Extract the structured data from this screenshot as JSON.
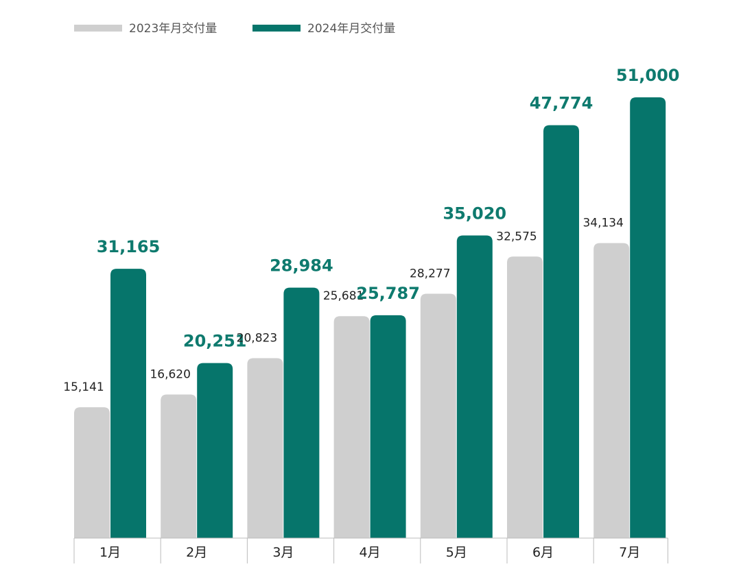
{
  "colors": {
    "series_2023": "#cfcfcf",
    "series_2024": "#06756b",
    "label_2024": "#0e7a6e",
    "label_2023": "#222222",
    "axis": "#bbbbbb"
  },
  "chart_data": {
    "type": "bar",
    "categories": [
      "1月",
      "2月",
      "3月",
      "4月",
      "5月",
      "6月",
      "7月"
    ],
    "series": [
      {
        "name": "2023年月交付量",
        "values": [
          15141,
          16620,
          20823,
          25681,
          28277,
          32575,
          34134
        ],
        "labels": [
          "15,141",
          "16,620",
          "20,823",
          "25,681",
          "28,277",
          "32,575",
          "34,134"
        ]
      },
      {
        "name": "2024年月交付量",
        "values": [
          31165,
          20251,
          28984,
          25787,
          35020,
          47774,
          51000
        ],
        "labels": [
          "31,165",
          "20,251",
          "28,984",
          "25,787",
          "35,020",
          "47,774",
          "51,000"
        ]
      }
    ],
    "ylim": [
      0,
      51000
    ],
    "legend_position": "top-left",
    "grid": false
  }
}
